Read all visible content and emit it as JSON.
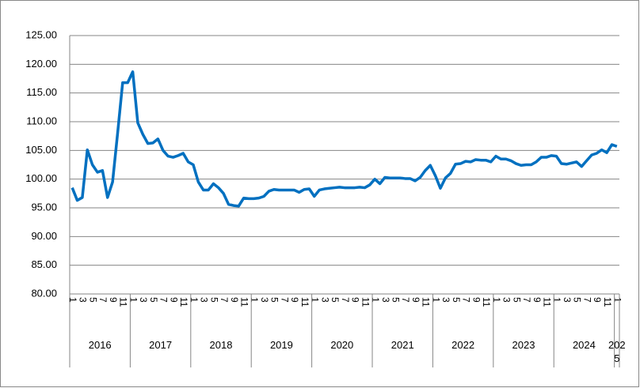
{
  "chart_data": {
    "type": "line",
    "yticks": [
      {
        "value": 80,
        "label": "80.00"
      },
      {
        "value": 85,
        "label": "85.00"
      },
      {
        "value": 90,
        "label": "90.00"
      },
      {
        "value": 95,
        "label": "95.00"
      },
      {
        "value": 100,
        "label": "100.00"
      },
      {
        "value": 105,
        "label": "105.00"
      },
      {
        "value": 110,
        "label": "110.00"
      },
      {
        "value": 115,
        "label": "115.00"
      },
      {
        "value": 120,
        "label": "120.00"
      },
      {
        "value": 125,
        "label": "125.00"
      }
    ],
    "ylim": [
      80,
      125
    ],
    "grid": true,
    "categories": [
      "1",
      null,
      "3",
      null,
      "5",
      null,
      "7",
      null,
      "9",
      null,
      "11",
      null,
      "1",
      null,
      "3",
      null,
      "5",
      null,
      "7",
      null,
      "9",
      null,
      "11",
      null,
      "1",
      null,
      "3",
      null,
      "5",
      null,
      "7",
      null,
      "9",
      null,
      "11",
      null,
      "1",
      null,
      "3",
      null,
      "5",
      null,
      "7",
      null,
      "9",
      null,
      "11",
      null,
      "1",
      null,
      "3",
      null,
      "5",
      null,
      "7",
      null,
      "9",
      null,
      "11",
      null,
      "1",
      null,
      "3",
      null,
      "5",
      null,
      "7",
      null,
      "9",
      null,
      "11",
      null,
      "1",
      null,
      "3",
      null,
      "5",
      null,
      "7",
      null,
      "9",
      null,
      "11",
      null,
      "1",
      null,
      "3",
      null,
      "5",
      null,
      "7",
      null,
      "9",
      null,
      "11",
      null,
      "1",
      null,
      "3",
      null,
      "5",
      null,
      "7",
      null,
      "9",
      null,
      "11",
      null,
      "1"
    ],
    "groups": [
      {
        "label": "2016",
        "span": 12
      },
      {
        "label": "2017",
        "span": 12
      },
      {
        "label": "2018",
        "span": 12
      },
      {
        "label": "2019",
        "span": 12
      },
      {
        "label": "2020",
        "span": 12
      },
      {
        "label": "2021",
        "span": 12
      },
      {
        "label": "2022",
        "span": 12
      },
      {
        "label": "2023",
        "span": 12
      },
      {
        "label": "2024",
        "span": 12
      },
      {
        "label": "2025",
        "span": 1
      }
    ],
    "series": [
      {
        "color": "#0070c0",
        "values": [
          98.5,
          96.3,
          96.8,
          105.1,
          102.5,
          101.2,
          101.5,
          96.8,
          99.5,
          108,
          116.8,
          116.8,
          118.7,
          109.8,
          107.8,
          106.2,
          106.3,
          107.0,
          105.0,
          104.0,
          103.8,
          104.1,
          104.5,
          103.0,
          102.5,
          99.5,
          98.1,
          98.1,
          99.2,
          98.5,
          97.5,
          95.6,
          95.4,
          95.3,
          96.7,
          96.6,
          96.6,
          96.7,
          97.0,
          97.9,
          98.2,
          98.1,
          98.1,
          98.1,
          98.1,
          97.7,
          98.2,
          98.3,
          97.0,
          98.1,
          98.3,
          98.4,
          98.5,
          98.6,
          98.5,
          98.5,
          98.5,
          98.6,
          98.5,
          99.0,
          100.0,
          99.2,
          100.3,
          100.2,
          100.2,
          100.2,
          100.1,
          100.1,
          99.7,
          100.3,
          101.5,
          102.4,
          100.6,
          98.4,
          100.2,
          101.0,
          102.6,
          102.7,
          103.1,
          103.0,
          103.4,
          103.3,
          103.3,
          103.0,
          104.0,
          103.5,
          103.5,
          103.2,
          102.7,
          102.4,
          102.5,
          102.5,
          103.0,
          103.8,
          103.8,
          104.1,
          104.0,
          102.7,
          102.6,
          102.8,
          103.0,
          102.2,
          103.2,
          104.2,
          104.5,
          105.1,
          104.6,
          106.0,
          105.7
        ]
      }
    ]
  }
}
